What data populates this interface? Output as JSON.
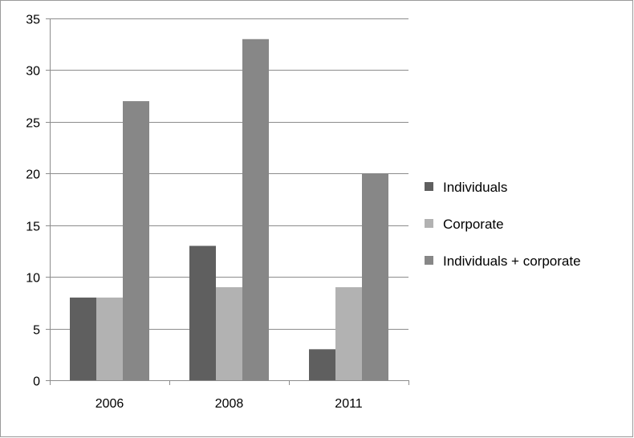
{
  "chart_data": {
    "type": "bar",
    "categories": [
      "2006",
      "2008",
      "2011"
    ],
    "series": [
      {
        "name": "Individuals",
        "color": "#5f5f5f",
        "values": [
          8,
          13,
          3
        ]
      },
      {
        "name": "Corporate",
        "color": "#b2b2b2",
        "values": [
          8,
          9,
          9
        ]
      },
      {
        "name": "Individuals + corporate",
        "color": "#878787",
        "values": [
          27,
          33,
          20
        ]
      }
    ],
    "ylim": [
      0,
      35
    ],
    "yticks": [
      0,
      5,
      10,
      15,
      20,
      25,
      30,
      35
    ],
    "grid": true,
    "legend_position": "right"
  }
}
